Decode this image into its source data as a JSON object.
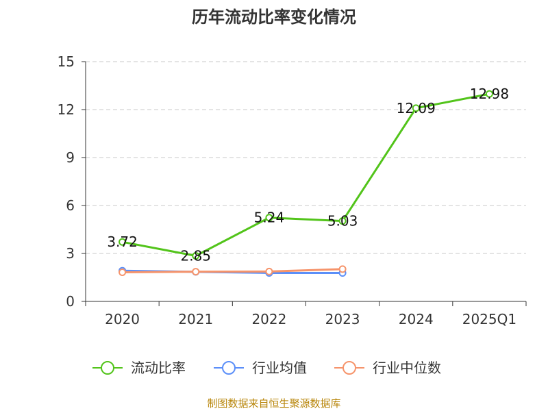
{
  "chart_data": {
    "type": "line",
    "title": "历年流动比率变化情况",
    "categories": [
      "2020",
      "2021",
      "2022",
      "2023",
      "2024",
      "2025Q1"
    ],
    "ylim": [
      0,
      15
    ],
    "yticks": [
      "0",
      "3",
      "6",
      "9",
      "12",
      "15"
    ],
    "grid": true,
    "legend_position": "bottom",
    "series": [
      {
        "name": "流动比率",
        "color": "#52c41a",
        "values": [
          3.72,
          2.85,
          5.24,
          5.03,
          12.09,
          12.98
        ],
        "labels": [
          "3.72",
          "2.85",
          "5.24",
          "5.03",
          "12.09",
          "12.98"
        ]
      },
      {
        "name": "行业均值",
        "color": "#5b8ff9",
        "values": [
          1.92,
          1.85,
          1.78,
          1.78,
          null,
          null
        ]
      },
      {
        "name": "行业中位数",
        "color": "#f6946b",
        "values": [
          1.82,
          1.86,
          1.87,
          2.02,
          null,
          null
        ]
      }
    ],
    "source": "制图数据来自恒生聚源数据库"
  }
}
